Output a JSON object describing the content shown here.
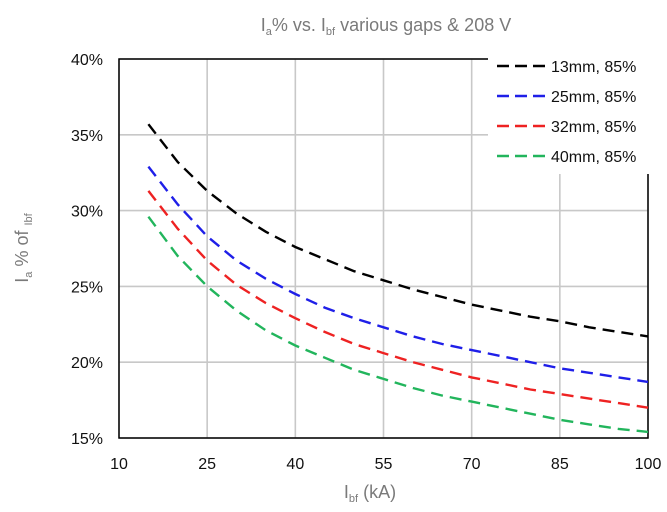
{
  "chart_data": {
    "type": "line",
    "title": {
      "prefix": "I",
      "prefix_sub": "a",
      "middle": "% vs. I",
      "middle_sub": "bf",
      "suffix": " various gaps & 208 V"
    },
    "xlabel": {
      "main": "I",
      "sub": "bf",
      "rest": " (kA)"
    },
    "ylabel": {
      "main": "I",
      "sub": "a",
      "rest": " % of ",
      "sub2": "Ibf"
    },
    "xlim": [
      10,
      100
    ],
    "ylim": [
      15,
      40
    ],
    "xticks": [
      10,
      25,
      40,
      55,
      70,
      85,
      100
    ],
    "yticks": [
      15,
      20,
      25,
      30,
      35,
      40
    ],
    "ytick_labels": [
      "15%",
      "20%",
      "25%",
      "30%",
      "35%",
      "40%"
    ],
    "grid": true,
    "legend_position": "top-right",
    "x": [
      15,
      20,
      25,
      30,
      35,
      40,
      45,
      50,
      55,
      60,
      65,
      70,
      75,
      80,
      85,
      90,
      95,
      100
    ],
    "series": [
      {
        "name": "13mm, 85%",
        "color": "#000000",
        "values": [
          35.7,
          33.2,
          31.3,
          29.8,
          28.6,
          27.6,
          26.8,
          26.0,
          25.4,
          24.8,
          24.3,
          23.8,
          23.4,
          23.0,
          22.7,
          22.3,
          22.0,
          21.7
        ]
      },
      {
        "name": "25mm, 85%",
        "color": "#1f1fe8",
        "values": [
          32.9,
          30.4,
          28.3,
          26.7,
          25.5,
          24.5,
          23.6,
          22.9,
          22.3,
          21.7,
          21.2,
          20.8,
          20.4,
          20.0,
          19.6,
          19.3,
          19.0,
          18.7
        ]
      },
      {
        "name": "32mm, 85%",
        "color": "#ee2222",
        "values": [
          31.3,
          28.8,
          26.7,
          25.1,
          23.9,
          22.9,
          22.0,
          21.2,
          20.6,
          20.0,
          19.5,
          19.0,
          18.6,
          18.2,
          17.9,
          17.6,
          17.3,
          17.0
        ]
      },
      {
        "name": "40mm, 85%",
        "color": "#22b55c",
        "values": [
          29.6,
          27.0,
          25.0,
          23.4,
          22.1,
          21.1,
          20.3,
          19.5,
          18.9,
          18.3,
          17.8,
          17.4,
          17.0,
          16.6,
          16.2,
          15.9,
          15.6,
          15.4
        ]
      }
    ]
  }
}
